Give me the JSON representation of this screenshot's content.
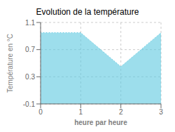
{
  "chart_data": {
    "type": "area",
    "title": "Evolution de la température",
    "xlabel": "heure par heure",
    "ylabel": "Température en °C",
    "x": [
      0,
      1,
      2,
      3
    ],
    "values": [
      0.95,
      0.95,
      0.45,
      0.95
    ],
    "color": "#5bc8e0",
    "line_style": "dotted",
    "xlim": [
      0,
      3
    ],
    "xticks": [
      0,
      1,
      2,
      3
    ],
    "ylim": [
      -0.1,
      1.1
    ],
    "yticks": [
      -0.1,
      0.3,
      0.7,
      1.1
    ],
    "grid": true
  }
}
